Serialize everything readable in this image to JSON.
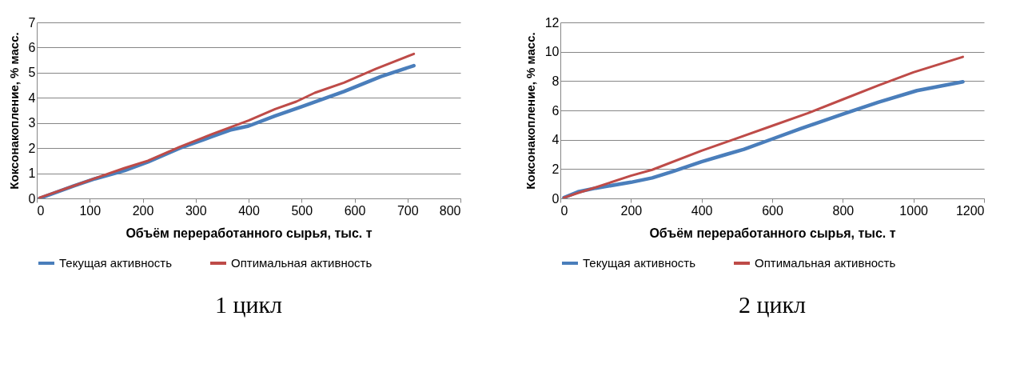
{
  "chart_data": [
    {
      "type": "line",
      "title": "1 цикл",
      "xlabel": "Объём переработанного сырья, тыс. т",
      "ylabel": "Коксонакопление, % масс.",
      "xlim": [
        0,
        800
      ],
      "xticks": [
        0,
        100,
        200,
        300,
        400,
        500,
        600,
        700,
        800
      ],
      "ylim": [
        0,
        7
      ],
      "yticks": [
        0,
        1,
        2,
        3,
        4,
        5,
        6,
        7
      ],
      "grid": "y",
      "legend": "bottom",
      "series": [
        {
          "name": "Текущая активность",
          "color": "#4a7ebb",
          "x": [
            5,
            70,
            110,
            165,
            210,
            270,
            330,
            365,
            400,
            450,
            500,
            580,
            650,
            712
          ],
          "values": [
            0,
            0.5,
            0.78,
            1.1,
            1.45,
            2.0,
            2.45,
            2.72,
            2.88,
            3.28,
            3.65,
            4.25,
            4.85,
            5.28
          ]
        },
        {
          "name": "Оптимальная активность",
          "color": "#be4b48",
          "x": [
            5,
            70,
            110,
            165,
            210,
            270,
            330,
            400,
            450,
            490,
            525,
            580,
            640,
            712
          ],
          "values": [
            0.03,
            0.5,
            0.8,
            1.2,
            1.5,
            2.05,
            2.55,
            3.1,
            3.55,
            3.85,
            4.2,
            4.6,
            5.15,
            5.75
          ]
        }
      ]
    },
    {
      "type": "line",
      "title": "2 цикл",
      "xlabel": "Объём переработанного сырья, тыс. т",
      "ylabel": "Коксонакопление, % масс.",
      "xlim": [
        0,
        1200
      ],
      "xticks": [
        0,
        200,
        400,
        600,
        800,
        1000,
        1200
      ],
      "ylim": [
        0,
        12
      ],
      "yticks": [
        0,
        2,
        4,
        6,
        8,
        10,
        12
      ],
      "grid": "y",
      "legend": "bottom",
      "series": [
        {
          "name": "Текущая активность",
          "color": "#4a7ebb",
          "x": [
            10,
            50,
            100,
            200,
            260,
            320,
            400,
            470,
            520,
            600,
            680,
            800,
            900,
            1010,
            1140
          ],
          "values": [
            0.05,
            0.45,
            0.7,
            1.1,
            1.4,
            1.85,
            2.5,
            3.0,
            3.35,
            4.05,
            4.75,
            5.75,
            6.55,
            7.35,
            7.95
          ]
        },
        {
          "name": "Оптимальная активность",
          "color": "#be4b48",
          "x": [
            10,
            60,
            100,
            200,
            260,
            400,
            500,
            600,
            700,
            800,
            900,
            1000,
            1140
          ],
          "values": [
            0.05,
            0.45,
            0.75,
            1.55,
            1.95,
            3.25,
            4.1,
            4.95,
            5.8,
            6.75,
            7.7,
            8.6,
            9.65
          ]
        }
      ]
    }
  ]
}
